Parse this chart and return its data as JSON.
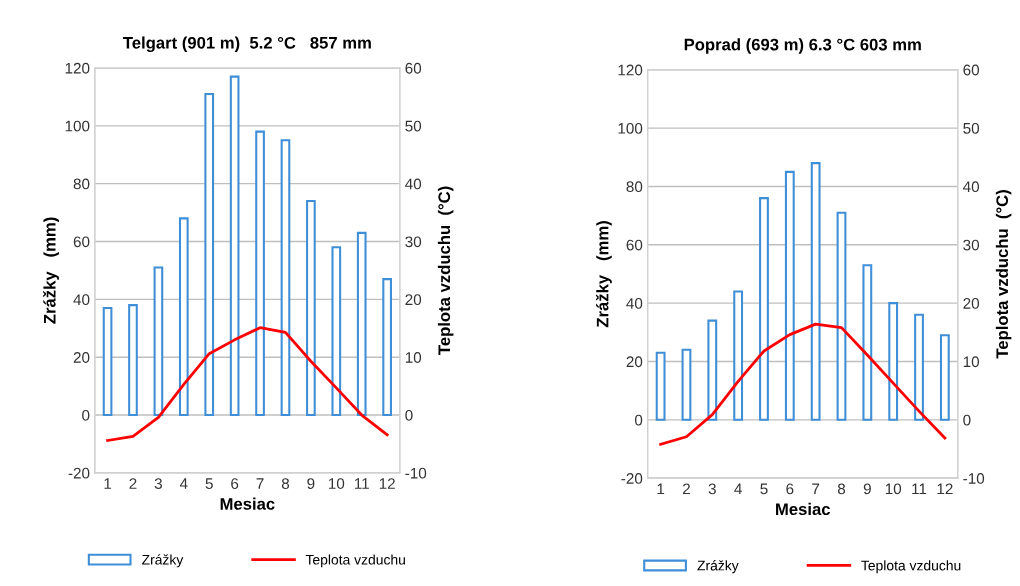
{
  "chart_data": [
    {
      "type": "bar",
      "title": "Telgart (901 m)  5.2 °C   857 mm",
      "xlabel": "Mesiac",
      "ylabel": "Zrážky   (mm)",
      "y2label": "Teplota vzduchu  (°C)",
      "categories": [
        "1",
        "2",
        "3",
        "4",
        "5",
        "6",
        "7",
        "8",
        "9",
        "10",
        "11",
        "12"
      ],
      "series": [
        {
          "name": "Zrážky",
          "color": "#3f8fd8",
          "values": [
            37,
            38,
            51,
            68,
            111,
            117,
            98,
            95,
            74,
            58,
            63,
            47
          ]
        },
        {
          "name": "Teplota vzduchu",
          "type": "line",
          "axis": "y2",
          "color": "#ff0000",
          "values": [
            -4.4,
            -3.7,
            -0.4,
            5.3,
            10.6,
            13.0,
            15.1,
            14.3,
            9.3,
            4.7,
            0.0,
            -3.4
          ]
        }
      ],
      "ylim": [
        -20,
        120
      ],
      "yticks": [
        -20,
        0,
        20,
        40,
        60,
        80,
        100,
        120
      ],
      "y2lim": [
        -10,
        60
      ],
      "y2ticks": [
        -10,
        0,
        10,
        20,
        30,
        40,
        50,
        60
      ],
      "grid": "y",
      "legend": "bottom",
      "marker": "none",
      "line_style": "solid"
    },
    {
      "type": "bar",
      "title": "Poprad (693 m) 6.3 °C 603 mm",
      "xlabel": "Mesiac",
      "ylabel": "Zrážky   (mm)",
      "y2label": "Teplota vzduchu  (°C)",
      "categories": [
        "1",
        "2",
        "3",
        "4",
        "5",
        "6",
        "7",
        "8",
        "9",
        "10",
        "11",
        "12"
      ],
      "series": [
        {
          "name": "Zrážky",
          "color": "#3f8fd8",
          "values": [
            23,
            24,
            34,
            44,
            76,
            85,
            88,
            71,
            53,
            40,
            36,
            29
          ]
        },
        {
          "name": "Teplota vzduchu",
          "type": "line",
          "axis": "y2",
          "color": "#ff0000",
          "values": [
            -4.2,
            -2.9,
            0.9,
            6.6,
            11.8,
            14.6,
            16.4,
            15.8,
            11.1,
            6.3,
            1.5,
            -3.1
          ]
        }
      ],
      "ylim": [
        -20,
        120
      ],
      "yticks": [
        -20,
        0,
        20,
        40,
        60,
        80,
        100,
        120
      ],
      "y2lim": [
        -10,
        60
      ],
      "y2ticks": [
        -10,
        0,
        10,
        20,
        30,
        40,
        50,
        60
      ],
      "grid": "y",
      "legend": "bottom",
      "marker": "none",
      "line_style": "solid"
    }
  ]
}
